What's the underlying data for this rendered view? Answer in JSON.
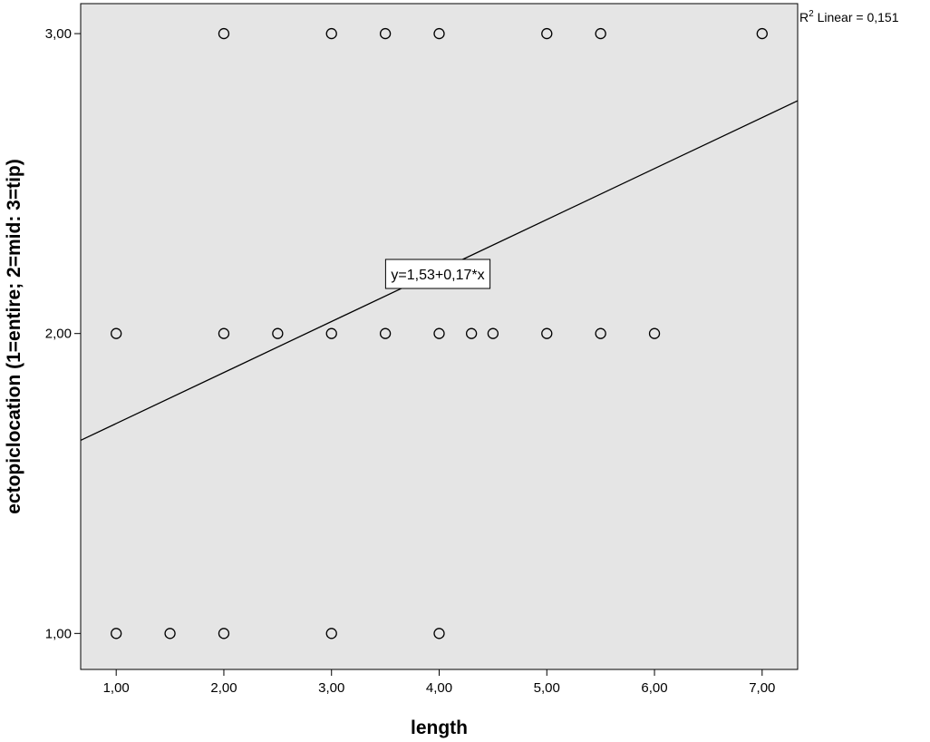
{
  "chart_data": {
    "type": "scatter",
    "title": "",
    "xlabel": "length",
    "ylabel": "ectopiclocation (1=entire; 2=mid: 3=tip)",
    "xlim": [
      0.67,
      7.33
    ],
    "ylim": [
      0.88,
      3.1
    ],
    "x_ticks": [
      1,
      2,
      3,
      4,
      5,
      6,
      7
    ],
    "x_tick_labels": [
      "1,00",
      "2,00",
      "3,00",
      "4,00",
      "5,00",
      "6,00",
      "7,00"
    ],
    "y_ticks": [
      1,
      2,
      3
    ],
    "y_tick_labels": [
      "1,00",
      "2,00",
      "3,00"
    ],
    "grid": false,
    "background_color": "#e5e5e5",
    "points": [
      {
        "x": 2.0,
        "y": 3
      },
      {
        "x": 3.0,
        "y": 3
      },
      {
        "x": 3.5,
        "y": 3
      },
      {
        "x": 4.0,
        "y": 3
      },
      {
        "x": 5.0,
        "y": 3
      },
      {
        "x": 5.5,
        "y": 3
      },
      {
        "x": 7.0,
        "y": 3
      },
      {
        "x": 1.0,
        "y": 2
      },
      {
        "x": 2.0,
        "y": 2
      },
      {
        "x": 2.5,
        "y": 2
      },
      {
        "x": 3.0,
        "y": 2
      },
      {
        "x": 3.5,
        "y": 2
      },
      {
        "x": 4.0,
        "y": 2
      },
      {
        "x": 4.3,
        "y": 2
      },
      {
        "x": 4.5,
        "y": 2
      },
      {
        "x": 5.0,
        "y": 2
      },
      {
        "x": 5.5,
        "y": 2
      },
      {
        "x": 6.0,
        "y": 2
      },
      {
        "x": 1.0,
        "y": 1
      },
      {
        "x": 1.5,
        "y": 1
      },
      {
        "x": 2.0,
        "y": 1
      },
      {
        "x": 3.0,
        "y": 1
      },
      {
        "x": 4.0,
        "y": 1
      }
    ],
    "fit_line": {
      "intercept": 1.53,
      "slope": 0.17,
      "equation_label": "y=1,53+0,17*x",
      "r2_prefix": "R",
      "r2_sup": "2",
      "r2_text": " Linear = 0,151"
    }
  }
}
